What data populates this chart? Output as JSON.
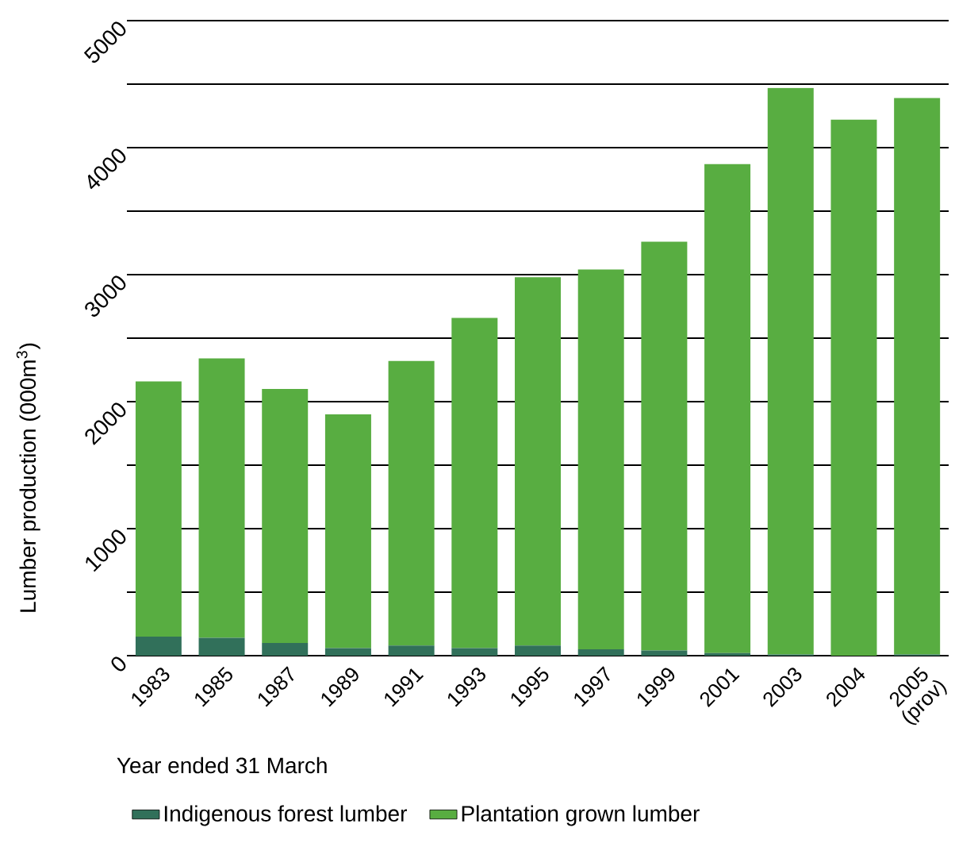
{
  "chart_data": {
    "type": "bar",
    "stacked": true,
    "categories": [
      "1983",
      "1985",
      "1987",
      "1989",
      "1991",
      "1993",
      "1995",
      "1997",
      "1999",
      "2001",
      "2003",
      "2004",
      "2005 (prov)"
    ],
    "series": [
      {
        "name": "Indigenous forest lumber",
        "color": "#31705a",
        "values": [
          150,
          140,
          100,
          60,
          80,
          60,
          80,
          50,
          40,
          20,
          10,
          0,
          10
        ]
      },
      {
        "name": "Plantation grown lumber",
        "color": "#58ad41",
        "values": [
          2010,
          2200,
          2000,
          1840,
          2240,
          2600,
          2900,
          2990,
          3220,
          3850,
          4460,
          4220,
          4380
        ]
      }
    ],
    "xlabel": "Year ended 31 March",
    "ylabel": "Lumber production (000m$^{3}$)",
    "ylim": [
      0,
      5000
    ],
    "yticks": [
      0,
      {
        "value": 500,
        "label": null
      },
      1000,
      {
        "value": 1500,
        "label": null
      },
      2000,
      {
        "value": 2500,
        "label": null
      },
      3000,
      {
        "value": 3500,
        "label": null
      },
      4000,
      {
        "value": 4500,
        "label": null
      },
      5000
    ],
    "grid": "y",
    "legend": "bottom"
  }
}
